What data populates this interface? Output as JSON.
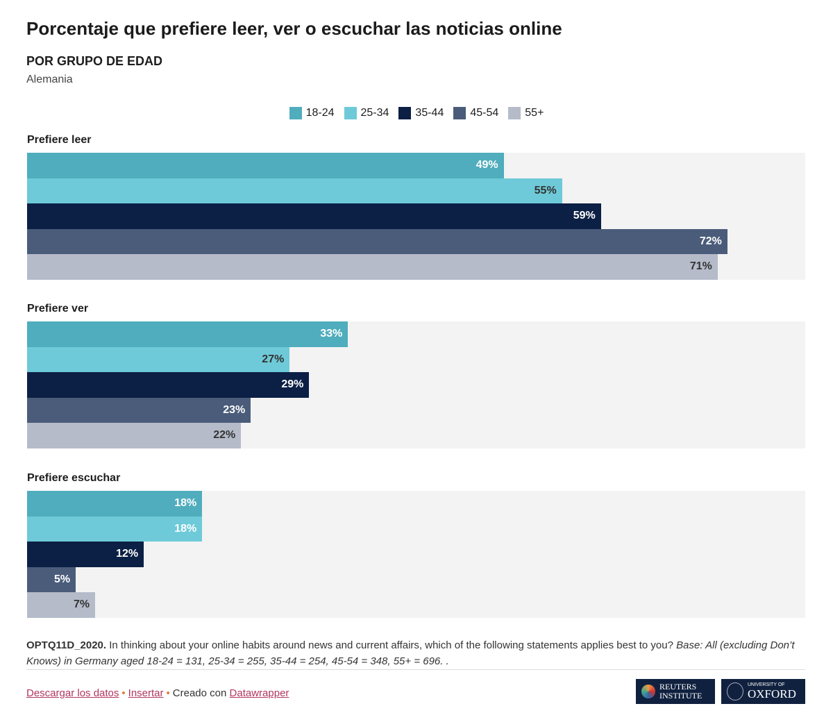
{
  "title": "Porcentaje que prefiere leer, ver o escuchar las noticias online",
  "subtitle": "POR GRUPO DE EDAD",
  "description": "Alemania",
  "chart_data": {
    "type": "bar",
    "orientation": "horizontal",
    "xlim": [
      0,
      80
    ],
    "legend_position": "top-center",
    "series": [
      {
        "name": "18-24",
        "color": "#4fadbd"
      },
      {
        "name": "25-34",
        "color": "#6ecad8"
      },
      {
        "name": "35-44",
        "color": "#0c1f44"
      },
      {
        "name": "45-54",
        "color": "#4a5c7a"
      },
      {
        "name": "55+",
        "color": "#b5bbc9"
      }
    ],
    "groups": [
      {
        "label": "Prefiere leer",
        "values": [
          49,
          55,
          59,
          72,
          71
        ],
        "labels": [
          "49%",
          "55%",
          "59%",
          "72%",
          "71%"
        ]
      },
      {
        "label": "Prefiere ver",
        "values": [
          33,
          27,
          29,
          23,
          22
        ],
        "labels": [
          "33%",
          "27%",
          "29%",
          "23%",
          "22%"
        ]
      },
      {
        "label": "Prefiere escuchar",
        "values": [
          18,
          18,
          12,
          5,
          7
        ],
        "labels": [
          "18%",
          "18%",
          "12%",
          "5%",
          "7%"
        ]
      }
    ]
  },
  "notes": {
    "code": "OPTQ11D_2020.",
    "question": " In thinking about your online habits around news and current affairs, which of the following statements applies best to you? ",
    "base": "Base: All (excluding Don’t Knows) in Germany aged 18-24 = 131, 25-34 = 255, 35-44 = 254, 45-54 = 348, 55+ = 696. ."
  },
  "footer": {
    "download": "Descargar los datos",
    "embed": "Insertar",
    "created": "Creado con",
    "tool": "Datawrapper",
    "sep": "•"
  },
  "logos": {
    "reuters": "REUTERS INSTITUTE",
    "oxford_top": "UNIVERSITY OF",
    "oxford": "OXFORD"
  }
}
